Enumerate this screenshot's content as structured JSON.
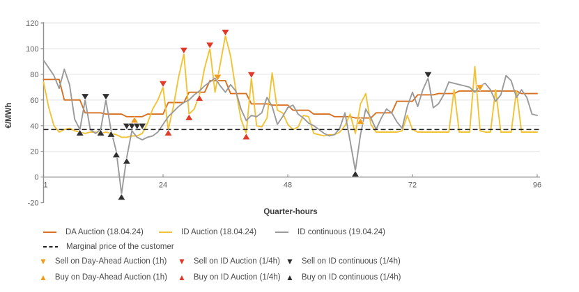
{
  "chart_data": {
    "type": "line",
    "xlabel": "Quarter-hours",
    "ylabel": "€/MWh",
    "xlim": [
      1,
      96
    ],
    "ylim": [
      -20,
      120
    ],
    "x_ticks": [
      1,
      24,
      48,
      72,
      96
    ],
    "y_ticks": [
      -20,
      0,
      20,
      40,
      60,
      80,
      100,
      120
    ],
    "grid": "horizontal",
    "legend_position": "bottom",
    "series": [
      {
        "name": "DA Auction (18.04.24)",
        "color": "#D8701F",
        "style": "solid",
        "resolution": "1h",
        "hourly_values": [
          76,
          60,
          50,
          49,
          47,
          49,
          58,
          66,
          75,
          65,
          57,
          56,
          52,
          49,
          47,
          46,
          50,
          59,
          64,
          65,
          67,
          67,
          67,
          65
        ]
      },
      {
        "name": "ID Auction (18.04.24)",
        "color": "#F2C235",
        "style": "solid",
        "resolution": "1/4h",
        "values": [
          74,
          54,
          40,
          35,
          37,
          38,
          36,
          35,
          34,
          35,
          35,
          34,
          35,
          34,
          33,
          31,
          31,
          32,
          32,
          34,
          42,
          53,
          60,
          70,
          37,
          55,
          78,
          96,
          49,
          53,
          64,
          85,
          100,
          66,
          88,
          110,
          94,
          68,
          45,
          34,
          77,
          40,
          39,
          46,
          81,
          52,
          50,
          41,
          37,
          39,
          48,
          47,
          34,
          33,
          32,
          33,
          33,
          35,
          40,
          49,
          34,
          57,
          65,
          41,
          35,
          35,
          35,
          35,
          35,
          36,
          48,
          37,
          35,
          35,
          35,
          35,
          35,
          35,
          35,
          68,
          35,
          35,
          35,
          86,
          36,
          35,
          35,
          68,
          35,
          35,
          35,
          67,
          35,
          35,
          35,
          35
        ]
      },
      {
        "name": "ID continuous (19.04.24)",
        "color": "#9A9A9A",
        "style": "solid",
        "resolution": "1/4h",
        "values": [
          91,
          85,
          79,
          69,
          84,
          72,
          45,
          37,
          60,
          37,
          34,
          37,
          60,
          36,
          20,
          -13,
          15,
          36,
          31,
          29,
          31,
          32,
          35,
          41,
          47,
          51,
          55,
          58,
          60,
          64,
          67,
          71,
          74,
          77,
          71,
          66,
          72,
          67,
          53,
          44,
          48,
          47,
          50,
          62,
          55,
          41,
          47,
          54,
          56,
          49,
          46,
          42,
          40,
          37,
          34,
          32,
          33,
          38,
          50,
          28,
          5,
          33,
          53,
          46,
          37,
          46,
          53,
          50,
          43,
          38,
          55,
          66,
          55,
          68,
          77,
          54,
          57,
          64,
          74,
          73,
          72,
          71,
          70,
          66,
          71,
          73,
          68,
          59,
          64,
          79,
          75,
          62,
          68,
          62,
          49,
          48
        ]
      }
    ],
    "reference_line": {
      "label": "Marginal price of the customer",
      "value": 37,
      "color": "#1F1F1F",
      "style": "dashed"
    },
    "markers": [
      {
        "name": "Sell on Day-Ahead Auction (1h)",
        "shape": "triangle-down",
        "color": "#F29C1F",
        "points": [
          [
            34.5,
            75
          ],
          [
            85,
            67
          ]
        ]
      },
      {
        "name": "Sell on ID Auction (1/4h)",
        "shape": "triangle-down",
        "color": "#DE3B2B",
        "points": [
          [
            24,
            70
          ],
          [
            28,
            96
          ],
          [
            33,
            100
          ],
          [
            36,
            110
          ],
          [
            41,
            77
          ]
        ]
      },
      {
        "name": "Sell on ID continuous (1/4h)",
        "shape": "triangle-down",
        "color": "#2F2F2F",
        "points": [
          [
            9,
            60
          ],
          [
            13,
            60
          ],
          [
            17,
            37
          ],
          [
            18,
            37
          ],
          [
            19,
            37
          ],
          [
            20,
            37
          ],
          [
            75,
            77
          ]
        ]
      },
      {
        "name": "Buy on Day-Ahead Auction (1h)",
        "shape": "triangle-up",
        "color": "#F29C1F",
        "points": [
          [
            18.5,
            47
          ],
          [
            62,
            46
          ]
        ]
      },
      {
        "name": "Buy on ID Auction (1/4h)",
        "shape": "triangle-up",
        "color": "#DE3B2B",
        "points": [
          [
            25,
            37
          ],
          [
            29,
            49
          ],
          [
            31,
            64
          ],
          [
            40,
            34
          ]
        ]
      },
      {
        "name": "Buy on ID continuous (1/4h)",
        "shape": "triangle-up",
        "color": "#2F2F2F",
        "points": [
          [
            8,
            37
          ],
          [
            12,
            37
          ],
          [
            14,
            36
          ],
          [
            15,
            20
          ],
          [
            16,
            -13
          ],
          [
            17,
            15
          ],
          [
            61,
            5
          ]
        ]
      }
    ]
  }
}
